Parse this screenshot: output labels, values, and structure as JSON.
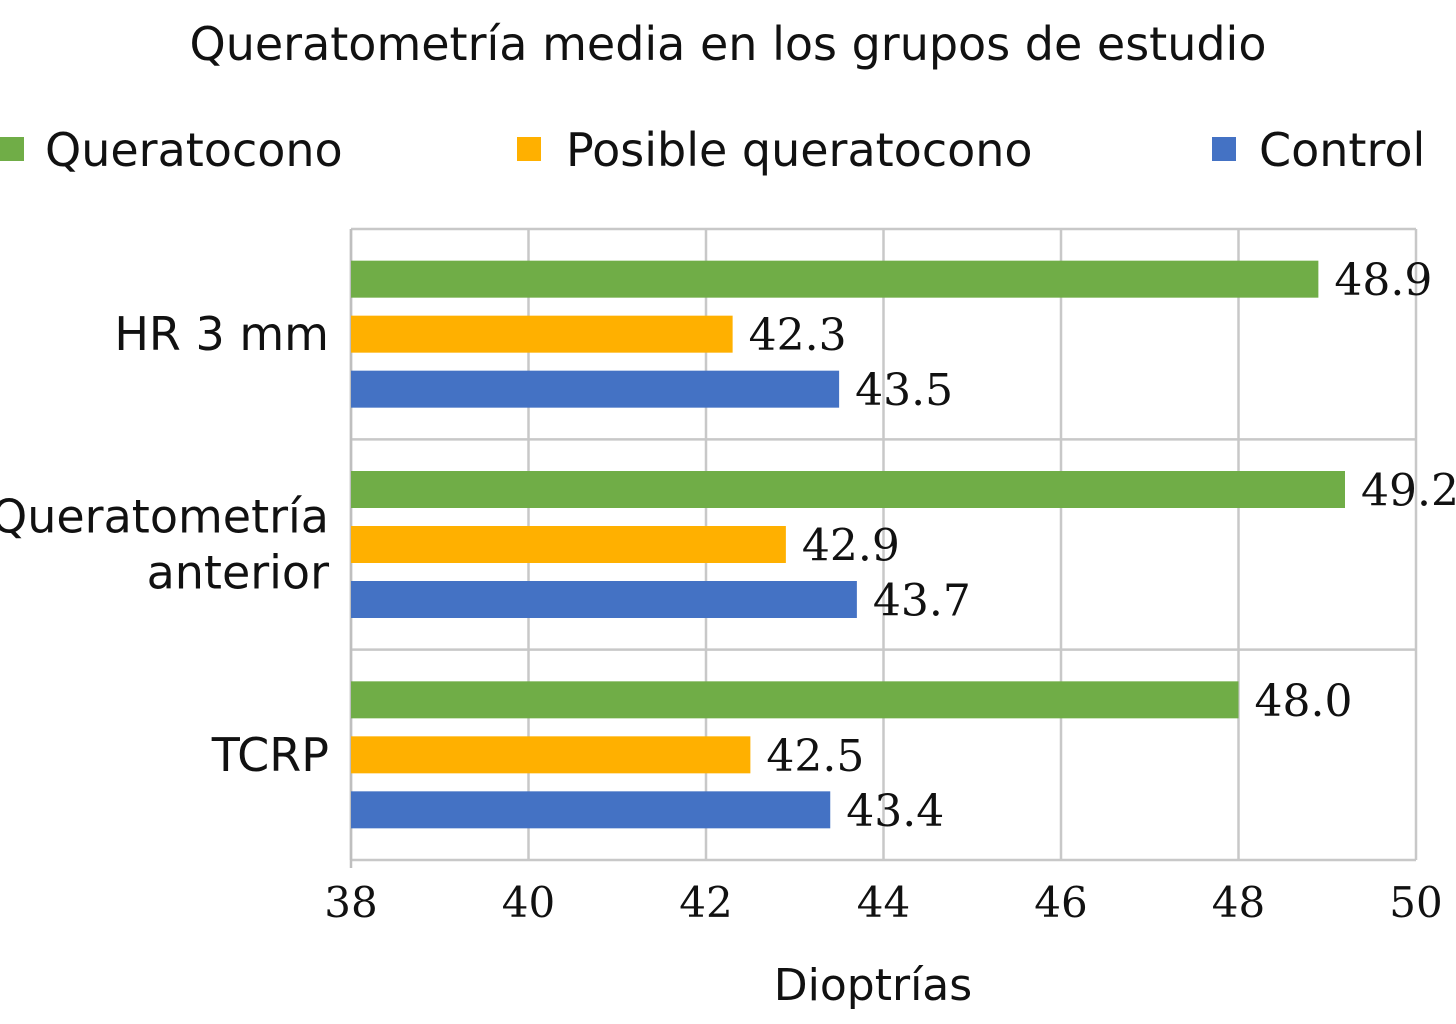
{
  "chart_data": {
    "type": "bar",
    "orientation": "horizontal",
    "title": "Queratometría media en los grupos de estudio",
    "xlabel": "Dioptrías",
    "ylabel": "",
    "xlim": [
      38,
      50
    ],
    "xticks": [
      "38",
      "40",
      "42",
      "44",
      "46",
      "48",
      "50"
    ],
    "grid": true,
    "legend_position": "top",
    "categories": [
      [
        "HR 3 mm"
      ],
      [
        "Queratometría",
        "anterior"
      ],
      [
        "TCRP"
      ]
    ],
    "series": [
      {
        "name": "Queratocono",
        "color": "#70AD47",
        "values": [
          48.9,
          49.2,
          48.0
        ],
        "labels": [
          "48.9",
          "49.2",
          "48.0"
        ]
      },
      {
        "name": "Posible queratocono",
        "color": "#FFB000",
        "values": [
          42.3,
          42.9,
          42.5
        ],
        "labels": [
          "42.3",
          "42.9",
          "42.5"
        ]
      },
      {
        "name": "Control",
        "color": "#4472C4",
        "values": [
          43.5,
          43.7,
          43.4
        ],
        "labels": [
          "43.5",
          "43.7",
          "43.4"
        ]
      }
    ]
  }
}
